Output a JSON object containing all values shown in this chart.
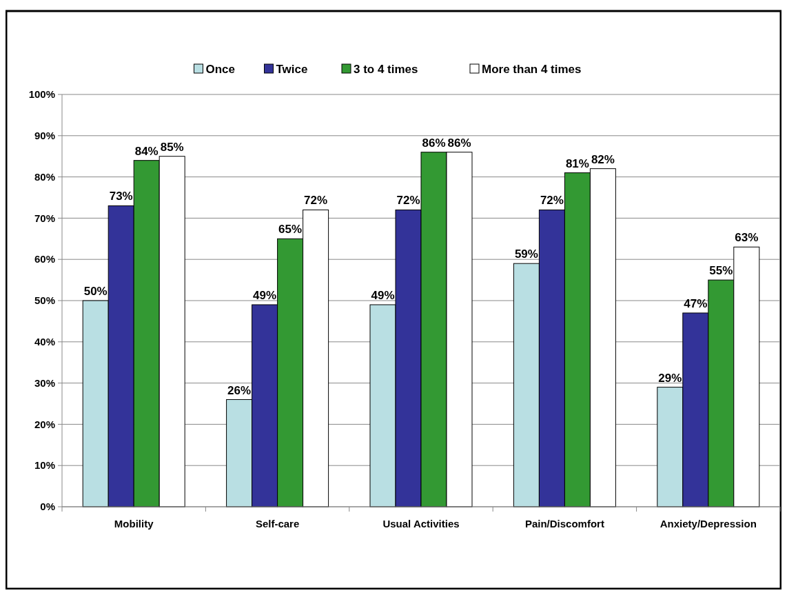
{
  "chart_data": {
    "type": "bar",
    "categories": [
      "Mobility",
      "Self-care",
      "Usual Activities",
      "Pain/Discomfort",
      "Anxiety/Depression"
    ],
    "series": [
      {
        "name": "Once",
        "color": "#b9dfe3",
        "values": [
          50,
          26,
          49,
          59,
          29
        ]
      },
      {
        "name": "Twice",
        "color": "#333399",
        "values": [
          73,
          49,
          72,
          72,
          47
        ]
      },
      {
        "name": "3 to 4 times",
        "color": "#339933",
        "values": [
          84,
          65,
          86,
          81,
          55
        ]
      },
      {
        "name": "More than 4 times",
        "color": "#ffffff",
        "values": [
          85,
          72,
          86,
          82,
          63
        ]
      }
    ],
    "ylim": [
      0,
      100
    ],
    "yticks": [
      {
        "value": 0,
        "label": "0%"
      },
      {
        "value": 10,
        "label": "10%"
      },
      {
        "value": 20,
        "label": "20%"
      },
      {
        "value": 30,
        "label": "30%"
      },
      {
        "value": 40,
        "label": "40%"
      },
      {
        "value": 50,
        "label": "50%"
      },
      {
        "value": 60,
        "label": "60%"
      },
      {
        "value": 70,
        "label": "70%"
      },
      {
        "value": 80,
        "label": "80%"
      },
      {
        "value": 90,
        "label": "90%"
      },
      {
        "value": 100,
        "label": "100%"
      }
    ],
    "value_labels": [
      [
        "50%",
        "26%",
        "49%",
        "59%",
        "29%"
      ],
      [
        "73%",
        "49%",
        "72%",
        "72%",
        "47%"
      ],
      [
        "84%",
        "65%",
        "86%",
        "81%",
        "55%"
      ],
      [
        "85%",
        "72%",
        "86%",
        "82%",
        "63%"
      ]
    ],
    "grid": "y",
    "legend": "top"
  }
}
